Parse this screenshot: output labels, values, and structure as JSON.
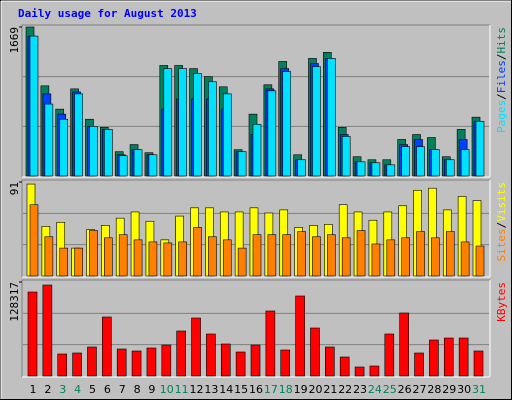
{
  "chart_data": [
    {
      "type": "bar",
      "title": "Daily usage for August 2013",
      "ylim": [
        0,
        1669
      ],
      "yticks": [
        1669
      ],
      "legend_separator": "/",
      "series": [
        {
          "name": "Hits",
          "color": "#00805c",
          "values": [
            1669,
            1010,
            749,
            976,
            636,
            545,
            272,
            352,
            261,
            1238,
            1238,
            1203,
            1113,
            999,
            295,
            693,
            1022,
            1283,
            238,
            1317,
            1385,
            545,
            216,
            182,
            182,
            409,
            465,
            431,
            216,
            522,
            659
          ]
        },
        {
          "name": "Files",
          "color": "#0040ff",
          "values": [
            1567,
            920,
            693,
            942,
            556,
            522,
            238,
            295,
            238,
            749,
            863,
            863,
            863,
            749,
            272,
            465,
            976,
            1203,
            182,
            1260,
            1317,
            465,
            159,
            148,
            125,
            352,
            409,
            295,
            182,
            409,
            613
          ]
        },
        {
          "name": "Pages",
          "color": "#00e0ff",
          "values": [
            1567,
            806,
            636,
            920,
            556,
            522,
            227,
            295,
            238,
            1203,
            1203,
            1147,
            1056,
            920,
            272,
            579,
            954,
            1170,
            182,
            1226,
            1317,
            443,
            159,
            148,
            125,
            329,
            329,
            295,
            182,
            295,
            613
          ]
        }
      ]
    },
    {
      "type": "bar",
      "ylim": [
        0,
        91
      ],
      "yticks": [
        91
      ],
      "legend_separator": "/",
      "series": [
        {
          "name": "Visits",
          "color": "#ffff00",
          "values": [
            89,
            48,
            52,
            27,
            45,
            49,
            56,
            62,
            53,
            35,
            58,
            66,
            66,
            62,
            62,
            66,
            61,
            64,
            47,
            49,
            50,
            69,
            62,
            54,
            62,
            68,
            83,
            85,
            64,
            77,
            73
          ]
        },
        {
          "name": "Sites",
          "color": "#ff8000",
          "values": [
            69,
            38,
            27,
            27,
            44,
            37,
            40,
            35,
            33,
            32,
            33,
            47,
            38,
            35,
            27,
            40,
            40,
            40,
            43,
            38,
            40,
            37,
            44,
            31,
            35,
            37,
            43,
            37,
            43,
            33,
            29
          ]
        }
      ]
    },
    {
      "type": "bar",
      "ylim": [
        0,
        128317
      ],
      "yticks": [
        128317
      ],
      "categories": [
        "1",
        "2",
        "3",
        "4",
        "5",
        "6",
        "7",
        "8",
        "9",
        "10",
        "11",
        "12",
        "13",
        "14",
        "15",
        "16",
        "17",
        "18",
        "19",
        "20",
        "21",
        "22",
        "23",
        "24",
        "25",
        "26",
        "27",
        "28",
        "29",
        "30",
        "31"
      ],
      "category_colors": [
        "#000000",
        "#000000",
        "#00805c",
        "#00805c",
        "#000000",
        "#000000",
        "#000000",
        "#000000",
        "#000000",
        "#00805c",
        "#00805c",
        "#000000",
        "#000000",
        "#000000",
        "#000000",
        "#000000",
        "#00805c",
        "#00805c",
        "#000000",
        "#000000",
        "#000000",
        "#000000",
        "#000000",
        "#00805c",
        "#00805c",
        "#000000",
        "#000000",
        "#000000",
        "#000000",
        "#000000",
        "#00805c"
      ],
      "series": [
        {
          "name": "KBytes",
          "color": "#ff0000",
          "values": [
            114668,
            124224,
            30032,
            31397,
            39588,
            80541,
            36857,
            34128,
            38223,
            42318,
            61430,
            79176,
            57334,
            43683,
            32762,
            42318,
            88732,
            35493,
            109208,
            65525,
            39588,
            25937,
            12286,
            13651,
            57334,
            86002,
            31397,
            49144,
            51874,
            51874,
            34128
          ]
        }
      ]
    }
  ]
}
